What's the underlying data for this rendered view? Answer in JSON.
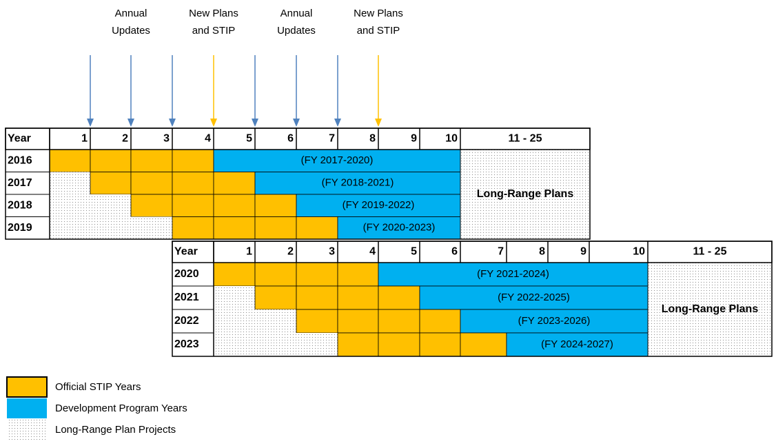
{
  "annotations": [
    {
      "lines": [
        "Annual",
        "Updates"
      ]
    },
    {
      "lines": [
        "New Plans",
        "and STIP"
      ]
    },
    {
      "lines": [
        "Annual",
        "Updates"
      ]
    },
    {
      "lines": [
        "New Plans",
        "and STIP"
      ]
    }
  ],
  "tables": [
    {
      "header": [
        "Year",
        "1",
        "2",
        "3",
        "4",
        "5",
        "6",
        "7",
        "8",
        "9",
        "10",
        "11 - 25"
      ],
      "rows": [
        {
          "year": "2016",
          "span": "(FY 2017-2020)"
        },
        {
          "year": "2017",
          "span": "(FY 2018-2021)"
        },
        {
          "year": "2018",
          "span": "(FY 2019-2022)"
        },
        {
          "year": "2019",
          "span": "(FY 2020-2023)"
        }
      ],
      "long_range": "Long-Range Plans"
    },
    {
      "header": [
        "Year",
        "1",
        "2",
        "3",
        "4",
        "5",
        "6",
        "7",
        "8",
        "9",
        "10",
        "11 - 25"
      ],
      "rows": [
        {
          "year": "2020",
          "span": "(FY 2021-2024)"
        },
        {
          "year": "2021",
          "span": "(FY 2022-2025)"
        },
        {
          "year": "2022",
          "span": "(FY 2023-2026)"
        },
        {
          "year": "2023",
          "span": "(FY 2024-2027)"
        }
      ],
      "long_range": "Long-Range Plans"
    }
  ],
  "legend": [
    "Official STIP Years",
    "Development Program Years",
    "Long-Range Plan Projects"
  ]
}
